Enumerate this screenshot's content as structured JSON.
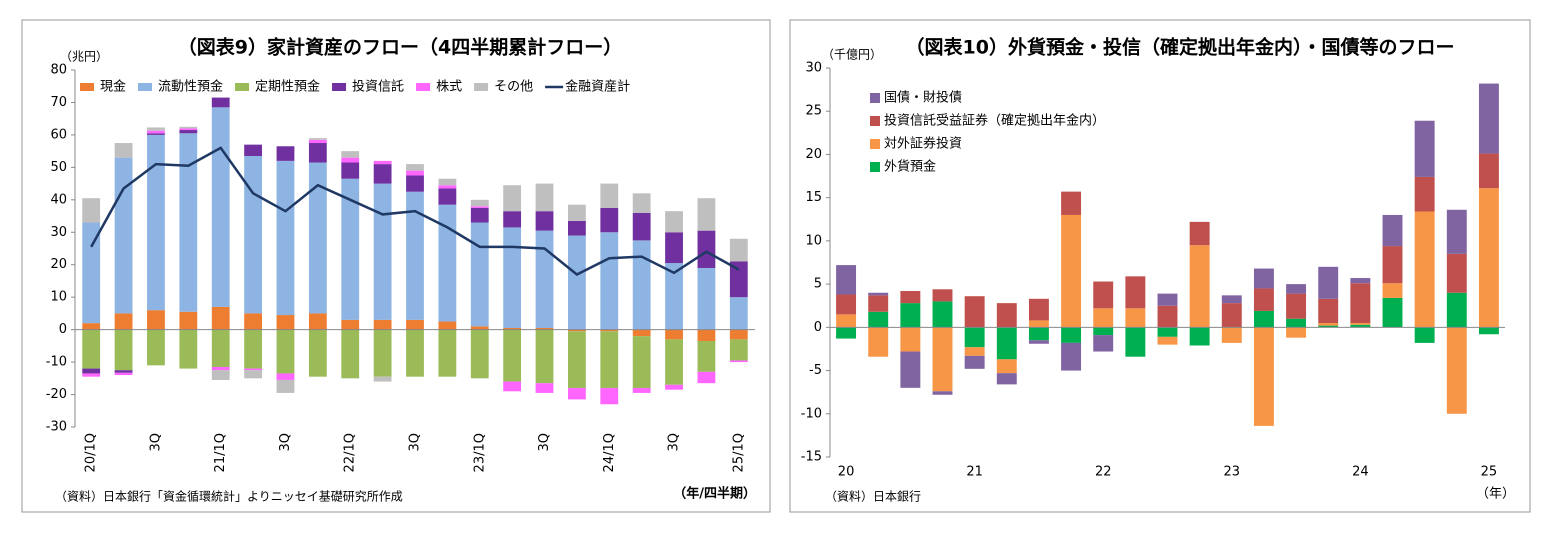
{
  "chart_data": [
    {
      "type": "bar",
      "stacked": true,
      "title": "（図表9）家計資産のフロー（4四半期累計フロー）",
      "y_label": "（兆円）",
      "x_label": "（年/四半期）",
      "source": "（資料）日本銀行「資金循環統計」よりニッセイ基礎研究所作成",
      "legend": "top",
      "categories": [
        "20/1Q",
        null,
        "3Q",
        null,
        "21/1Q",
        null,
        "3Q",
        null,
        "22/1Q",
        null,
        "3Q",
        null,
        "23/1Q",
        null,
        "3Q",
        null,
        "24/1Q",
        null,
        "3Q",
        null,
        "25/1Q"
      ],
      "ylim": [
        -30,
        80
      ],
      "yticks": [
        -30,
        -20,
        -10,
        0,
        10,
        20,
        30,
        40,
        50,
        60,
        70,
        80
      ],
      "series": [
        {
          "name": "現金",
          "color": "#ed7d31",
          "values": [
            2,
            5,
            6,
            5.5,
            7,
            5,
            4.5,
            5,
            3,
            3,
            3,
            2.5,
            1,
            0.5,
            0.5,
            -0.5,
            -0.5,
            -2,
            -3,
            -3.5,
            -3
          ]
        },
        {
          "name": "流動性預金",
          "color": "#8db4e2",
          "values": [
            31,
            48,
            54,
            55,
            61.5,
            48.5,
            47.5,
            46.5,
            43.5,
            42,
            39.5,
            36,
            32,
            31,
            30,
            29,
            30,
            27.5,
            20.5,
            19,
            10
          ]
        },
        {
          "name": "定期性預金",
          "color": "#9bbb59",
          "values": [
            -12,
            -12.5,
            -11,
            -12,
            -11.5,
            -12,
            -13.5,
            -14.5,
            -15,
            -14.5,
            -14.5,
            -14.5,
            -15,
            -16,
            -16.5,
            -17.5,
            -17.5,
            -16,
            -14,
            -9.5,
            -6.5
          ]
        },
        {
          "name": "投資信託",
          "color": "#7030a0",
          "values": [
            -1.5,
            -0.8,
            0.5,
            1,
            3,
            3.5,
            4.5,
            6,
            5,
            6,
            5,
            5,
            4.5,
            5,
            6,
            4.5,
            7.5,
            8.5,
            9.5,
            11.5,
            11
          ]
        },
        {
          "name": "株式",
          "color": "#ff66ff",
          "values": [
            -1,
            -0.7,
            0.8,
            0.5,
            -1,
            -0.5,
            -2,
            1,
            1.5,
            1,
            1.5,
            1,
            0.5,
            -3,
            -3,
            -3.5,
            -5,
            -1.5,
            -1.5,
            -3.5,
            -0.5
          ]
        },
        {
          "name": "その他",
          "color": "#bfbfbf",
          "values": [
            7.5,
            4.5,
            1,
            0.5,
            -3,
            -2.5,
            -4,
            0.5,
            2,
            -1.5,
            2,
            2,
            2,
            8,
            8.5,
            5,
            7.5,
            6,
            6.5,
            10,
            7
          ]
        },
        {
          "name": "金融資産計",
          "color": "#1f3864",
          "type": "line",
          "values": [
            25.5,
            43.5,
            51,
            50.5,
            56,
            42,
            36.5,
            44.5,
            40,
            35.5,
            36.5,
            31.5,
            25.5,
            25.5,
            25,
            17,
            22,
            22.5,
            17.5,
            24,
            18.5
          ]
        }
      ]
    },
    {
      "type": "bar",
      "stacked": true,
      "title": "（図表10）外貨預金・投信（確定拠出年金内）・国債等のフロー",
      "y_label": "（千億円）",
      "x_label": "（年）",
      "source": "（資料）日本銀行",
      "legend": "upper left",
      "categories": [
        "20",
        null,
        null,
        null,
        "21",
        null,
        null,
        null,
        "22",
        null,
        null,
        null,
        "23",
        null,
        null,
        null,
        "24",
        null,
        null,
        null,
        "25"
      ],
      "ylim": [
        -15,
        30
      ],
      "yticks": [
        -15,
        -10,
        -5,
        0,
        5,
        10,
        15,
        20,
        25,
        30
      ],
      "series": [
        {
          "name": "外貨預金",
          "color": "#00b050",
          "values": [
            -1.3,
            1.8,
            2.8,
            3.0,
            -2.3,
            -3.7,
            -1.5,
            -1.8,
            -0.9,
            -3.4,
            -1.1,
            -2.1,
            0,
            1.9,
            1.0,
            0.2,
            0.3,
            3.4,
            -1.8,
            4.0,
            -0.8
          ]
        },
        {
          "name": "対外証券投資",
          "color": "#f79646",
          "values": [
            1.5,
            -3.4,
            -2.8,
            -7.4,
            -1.0,
            -1.6,
            0.8,
            13.0,
            2.2,
            2.2,
            -0.9,
            9.5,
            -1.8,
            -11.4,
            -1.2,
            0.3,
            0.2,
            1.7,
            13.4,
            -10,
            16.1
          ]
        },
        {
          "name": "投資信託受益証券（確定拠出年金内）",
          "color": "#c0504d",
          "values": [
            2.3,
            1.9,
            1.4,
            1.4,
            3.6,
            2.8,
            2.5,
            2.7,
            3.1,
            3.7,
            2.5,
            2.7,
            2.8,
            2.6,
            2.9,
            2.8,
            4.6,
            4.3,
            4.0,
            4.5,
            4.0
          ]
        },
        {
          "name": "国債・財投債",
          "color": "#8064a2",
          "values": [
            3.4,
            0.3,
            -4.2,
            -0.4,
            -1.5,
            -1.3,
            -0.4,
            -3.2,
            -1.9,
            0,
            1.4,
            0,
            0.9,
            2.3,
            1.1,
            3.7,
            0.6,
            3.6,
            6.5,
            5.1,
            8.1
          ]
        }
      ]
    }
  ]
}
